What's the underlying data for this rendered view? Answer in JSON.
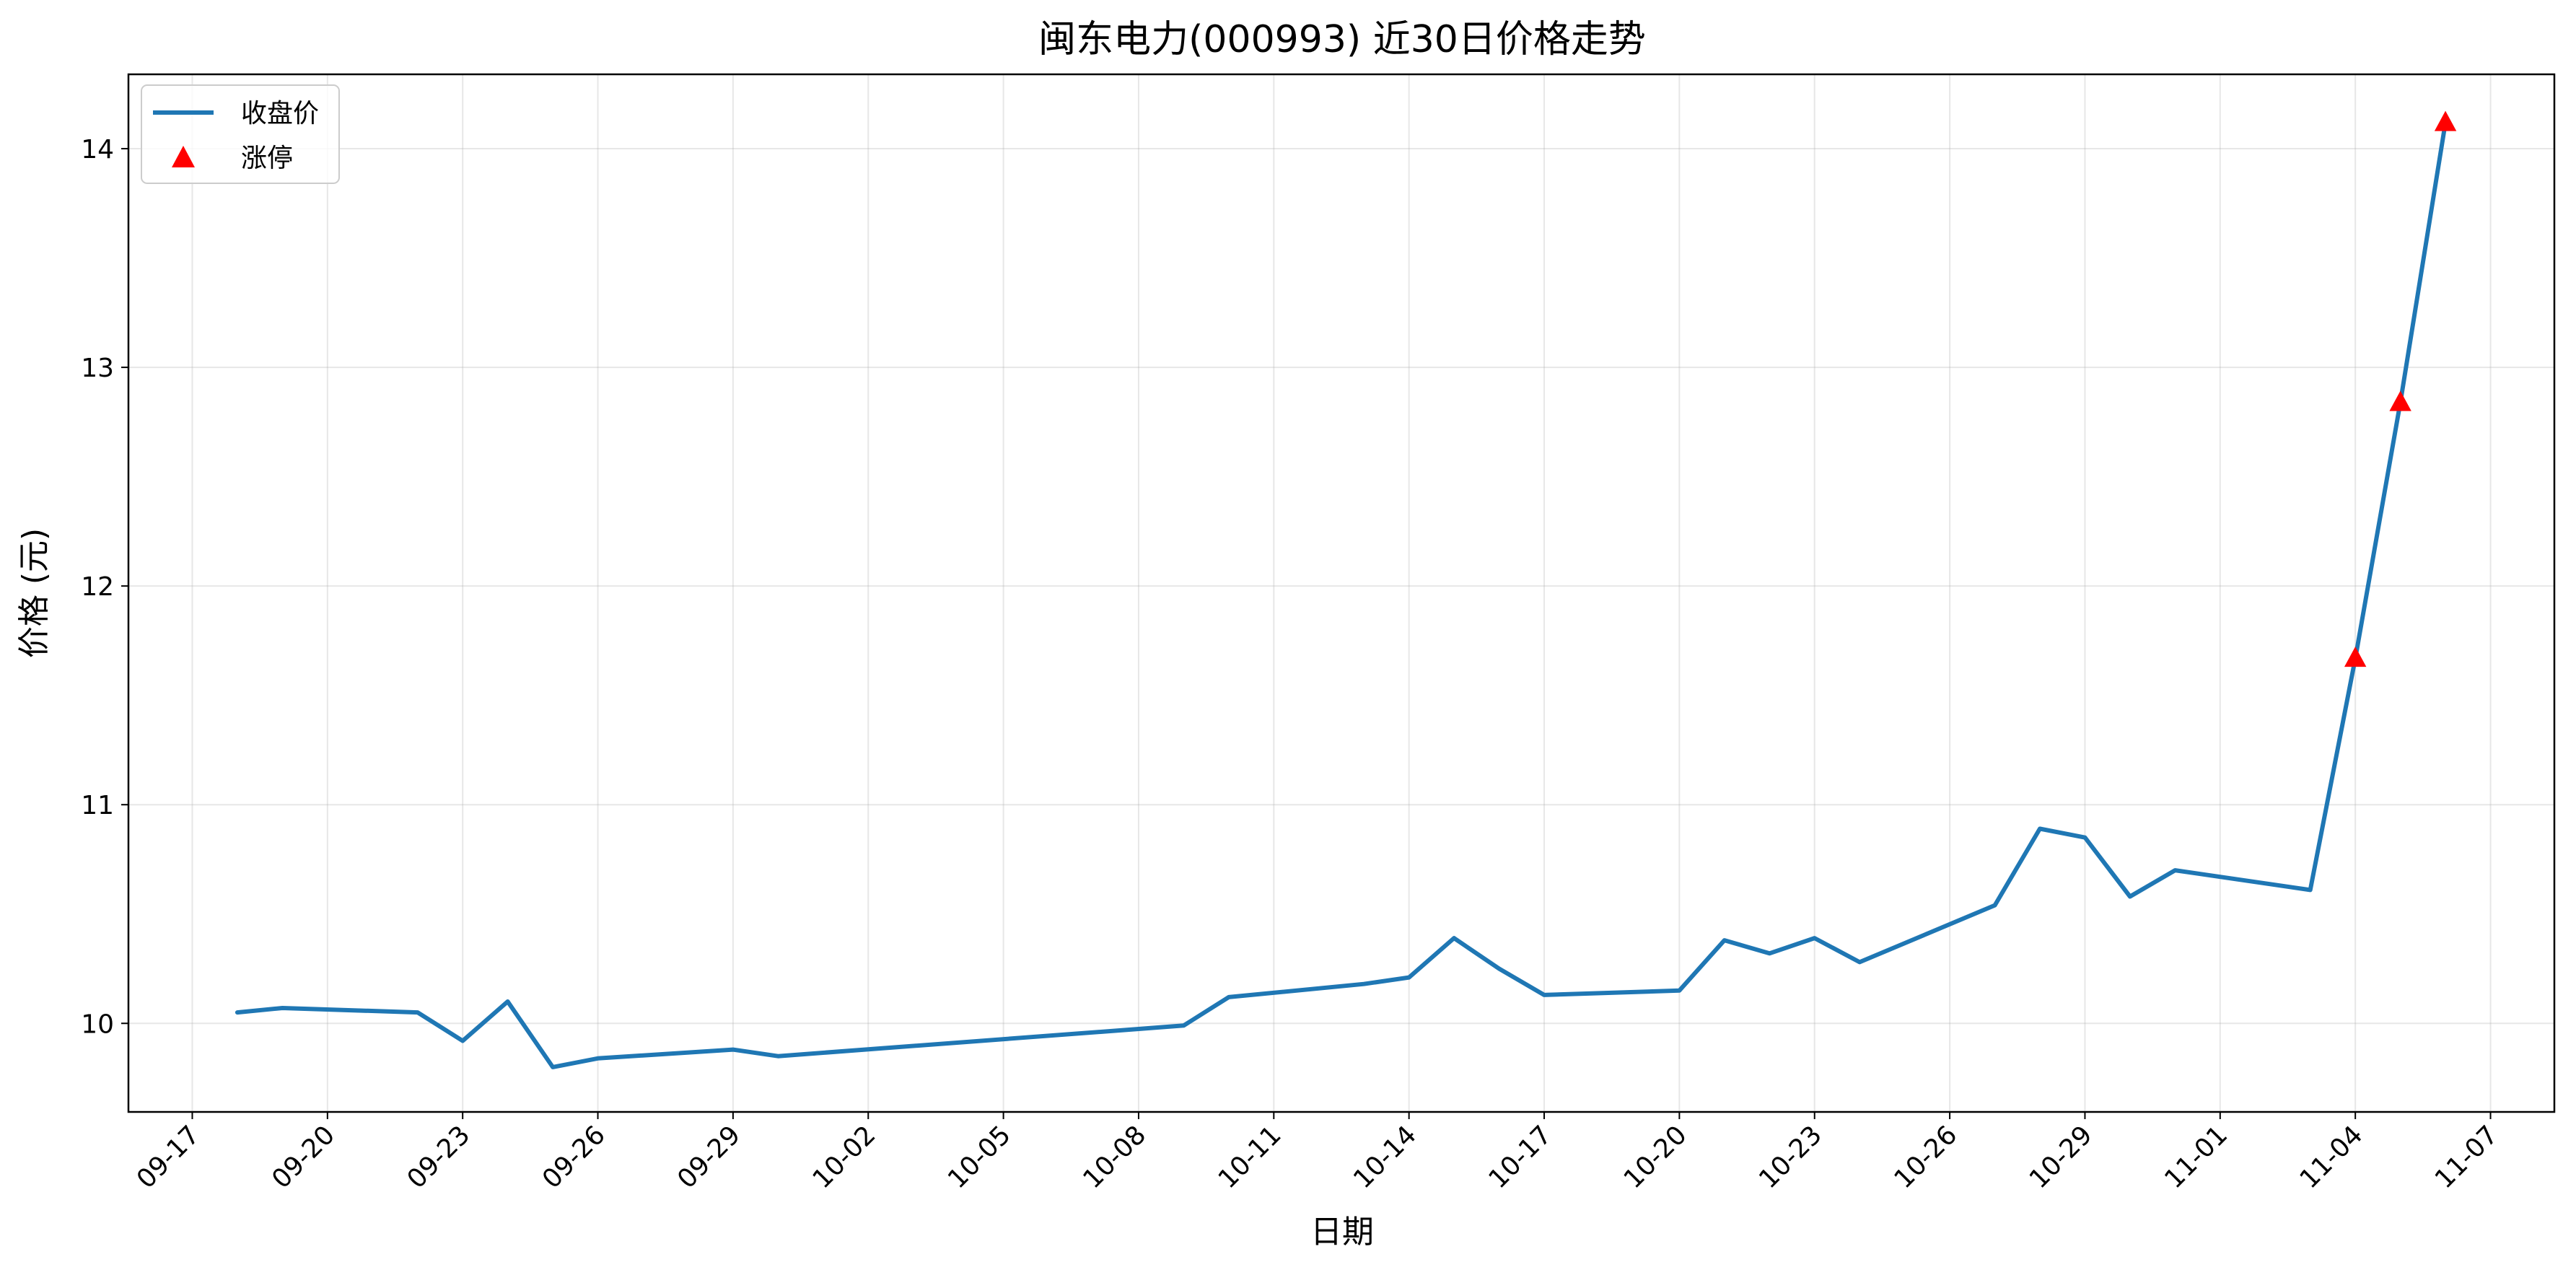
{
  "chart_data": {
    "type": "line",
    "title": "闽东电力(000993) 近30日价格走势",
    "xlabel": "日期",
    "ylabel": "价格 (元)",
    "x": [
      "2025-09-18",
      "2025-09-19",
      "2025-09-22",
      "2025-09-23",
      "2025-09-24",
      "2025-09-25",
      "2025-09-26",
      "2025-09-29",
      "2025-09-30",
      "2025-10-09",
      "2025-10-10",
      "2025-10-13",
      "2025-10-14",
      "2025-10-15",
      "2025-10-16",
      "2025-10-17",
      "2025-10-20",
      "2025-10-21",
      "2025-10-22",
      "2025-10-23",
      "2025-10-24",
      "2025-10-27",
      "2025-10-28",
      "2025-10-29",
      "2025-10-30",
      "2025-10-31",
      "2025-11-03",
      "2025-11-04",
      "2025-11-05",
      "2025-11-06"
    ],
    "series": [
      {
        "name": "收盘价",
        "color": "#1f77b4",
        "values": [
          10.05,
          10.07,
          10.05,
          9.92,
          10.1,
          9.8,
          9.84,
          9.88,
          9.85,
          9.99,
          10.12,
          10.18,
          10.21,
          10.39,
          10.25,
          10.13,
          10.15,
          10.38,
          10.32,
          10.39,
          10.28,
          10.54,
          10.89,
          10.85,
          10.58,
          10.7,
          10.61,
          11.67,
          12.84,
          14.12
        ]
      },
      {
        "name": "涨停",
        "color": "#ff0000",
        "marker": "triangle",
        "x": [
          "2025-11-04",
          "2025-11-05",
          "2025-11-06"
        ],
        "values": [
          11.67,
          12.84,
          14.12
        ]
      }
    ],
    "xticks": [
      "09-17",
      "09-20",
      "09-23",
      "09-26",
      "09-29",
      "10-02",
      "10-05",
      "10-08",
      "10-11",
      "10-14",
      "10-17",
      "10-20",
      "10-23",
      "10-26",
      "10-29",
      "11-01",
      "11-04",
      "11-07"
    ],
    "xtick_year": "2025",
    "yticks": [
      10,
      11,
      12,
      13,
      14
    ],
    "ylim": [
      9.595,
      14.34
    ],
    "xlim": [
      "2025-09-15T14:00",
      "2025-11-08T10:00"
    ],
    "grid": true,
    "legend_position": "top-left"
  }
}
